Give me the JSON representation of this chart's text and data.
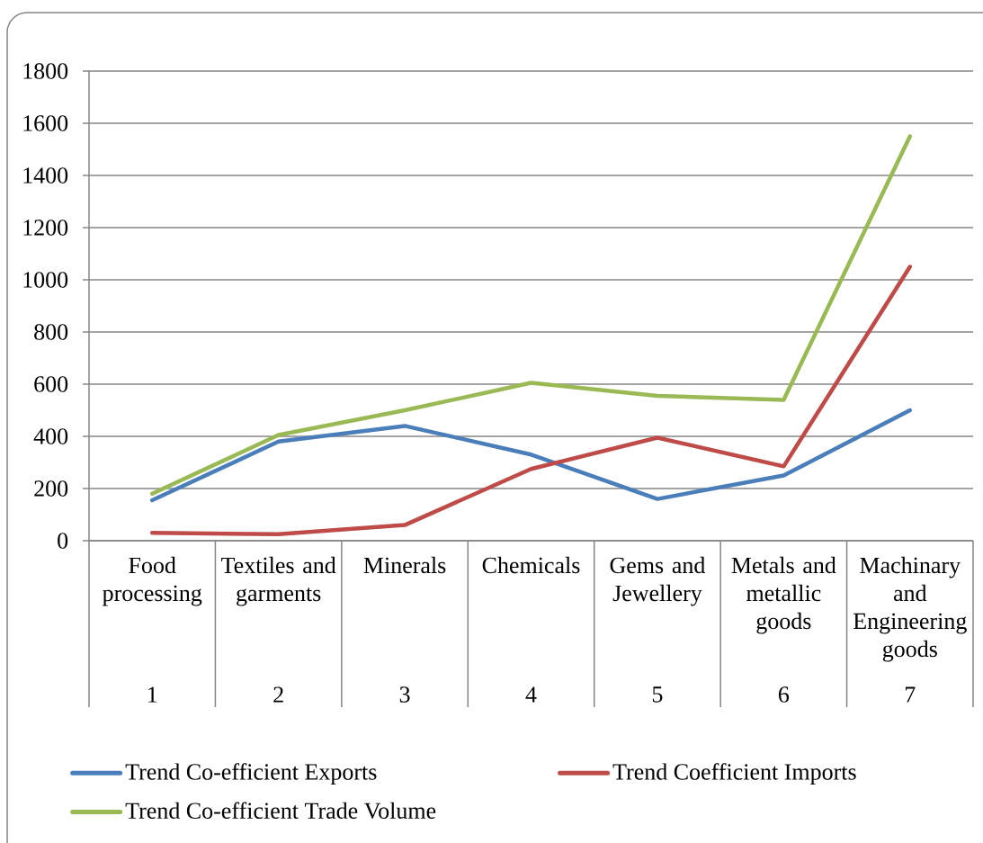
{
  "chart_data": {
    "type": "line",
    "categories": [
      "Food processing",
      "Textiles and garments",
      "Minerals",
      "Chemicals",
      "Gems and Jewellery",
      "Metals and metallic goods",
      "Machinary and Engineering goods"
    ],
    "annotations": [
      "1",
      "2",
      "3",
      "4",
      "5",
      "6",
      "7"
    ],
    "series": [
      {
        "name": "Trend Co-efficient Exports",
        "color": "#4a7ebb",
        "values": [
          155,
          380,
          440,
          330,
          160,
          250,
          500
        ]
      },
      {
        "name": "Trend Coefficient Imports",
        "color": "#be4b48",
        "values": [
          30,
          25,
          60,
          275,
          395,
          285,
          1050
        ]
      },
      {
        "name": "Trend Co-efficient Trade Volume",
        "color": "#98b954",
        "values": [
          180,
          405,
          500,
          605,
          555,
          540,
          1550
        ]
      }
    ],
    "ylim": [
      0,
      1800
    ],
    "yticks": [
      0,
      200,
      400,
      600,
      800,
      1000,
      1200,
      1400,
      1600,
      1800
    ],
    "grid": "y",
    "legend": "bottom",
    "marker": "none",
    "line_style": "solid"
  }
}
